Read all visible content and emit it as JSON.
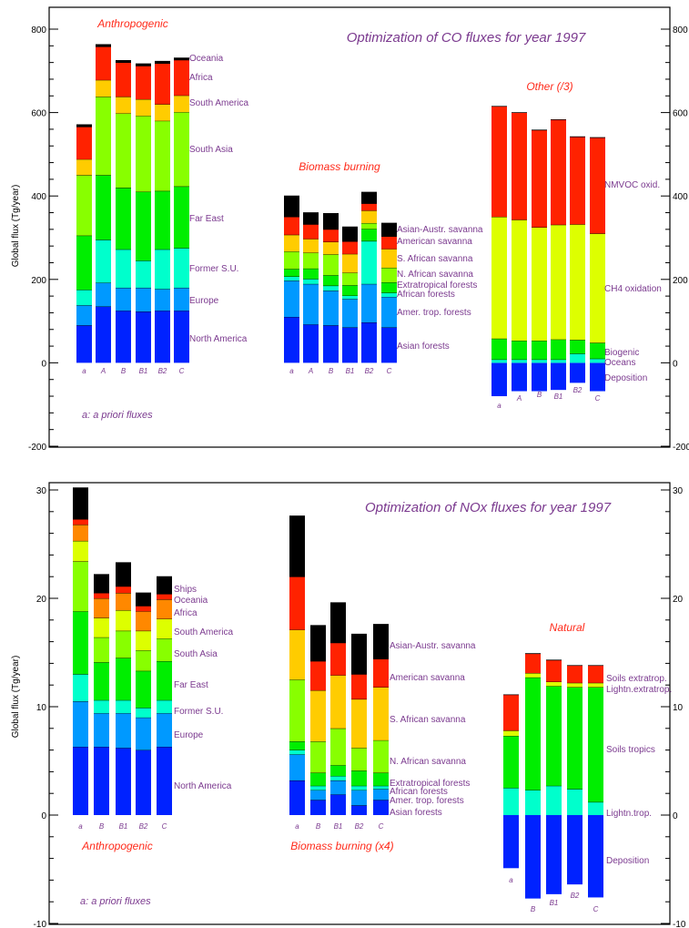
{
  "colors": {
    "palette": [
      "#0022FF",
      "#0099FF",
      "#00FFCC",
      "#00EE00",
      "#88FF00",
      "#DDFF00",
      "#FFCC00",
      "#FF8800",
      "#FF2200",
      "#000000"
    ],
    "label": "#7B3A8F",
    "group_title": "#FF2A1A"
  },
  "chart_data": [
    {
      "type": "bar",
      "stacked": true,
      "title": "Optimization of CO fluxes for year 1997",
      "ylabel": "Global flux (Tg/year)",
      "ylim": [
        -200,
        800
      ],
      "yticks": [
        -200,
        0,
        200,
        400,
        600,
        800
      ],
      "note": "a: a priori fluxes",
      "groups": [
        {
          "title": "Anthropogenic",
          "categories": [
            "a",
            "A",
            "B",
            "B1",
            "B2",
            "C"
          ],
          "legend": [
            "North America",
            "Europe",
            "Former S.U.",
            "Far East",
            "South Asia",
            "South America",
            "Africa",
            "Oceania"
          ],
          "series": [
            {
              "name": "North America",
              "color_index": 0,
              "values": [
                90,
                135,
                125,
                123,
                125,
                125
              ]
            },
            {
              "name": "Europe",
              "color_index": 1,
              "values": [
                48,
                57,
                55,
                57,
                52,
                55
              ]
            },
            {
              "name": "Former S.U.",
              "color_index": 2,
              "values": [
                37,
                103,
                92,
                65,
                95,
                95
              ]
            },
            {
              "name": "Far East",
              "color_index": 3,
              "values": [
                130,
                155,
                148,
                165,
                140,
                148
              ]
            },
            {
              "name": "South Asia",
              "color_index": 4,
              "values": [
                145,
                188,
                178,
                182,
                168,
                178
              ]
            },
            {
              "name": "South America",
              "color_index": 6,
              "values": [
                38,
                40,
                40,
                40,
                40,
                40
              ]
            },
            {
              "name": "Africa",
              "color_index": 8,
              "values": [
                78,
                80,
                82,
                80,
                98,
                85
              ]
            },
            {
              "name": "Oceania",
              "color_index": 9,
              "values": [
                5,
                5,
                5,
                5,
                5,
                5
              ]
            }
          ]
        },
        {
          "title": "Biomass burning",
          "categories": [
            "a",
            "A",
            "B",
            "B1",
            "B2",
            "C"
          ],
          "legend": [
            "Asian forests",
            "Amer. trop. forests",
            "African forests",
            "Extratropical forests",
            "N. African savanna",
            "S. African savanna",
            "American savanna",
            "Asian-Austr. savanna"
          ],
          "series": [
            {
              "name": "Asian forests",
              "color_index": 0,
              "values": [
                110,
                92,
                90,
                85,
                97,
                85
              ]
            },
            {
              "name": "Amer. trop. forests",
              "color_index": 1,
              "values": [
                87,
                97,
                83,
                68,
                92,
                73
              ]
            },
            {
              "name": "African forests",
              "color_index": 2,
              "values": [
                10,
                12,
                12,
                8,
                103,
                10
              ]
            },
            {
              "name": "Extratropical forests",
              "color_index": 3,
              "values": [
                18,
                25,
                25,
                25,
                29,
                25
              ]
            },
            {
              "name": "N. African savanna",
              "color_index": 4,
              "values": [
                42,
                38,
                50,
                30,
                14,
                35
              ]
            },
            {
              "name": "S. African savanna",
              "color_index": 6,
              "values": [
                40,
                33,
                30,
                45,
                30,
                45
              ]
            },
            {
              "name": "American savanna",
              "color_index": 8,
              "values": [
                43,
                35,
                30,
                30,
                17,
                30
              ]
            },
            {
              "name": "Asian-Austr. savanna",
              "color_index": 9,
              "values": [
                50,
                28,
                38,
                35,
                27,
                32
              ]
            }
          ]
        },
        {
          "title": "Other (/3)",
          "categories": [
            "a",
            "A",
            "B",
            "B1",
            "B2",
            "C"
          ],
          "legend": [
            "Deposition",
            "Oceans",
            "Biogenic",
            "CH4 oxidation",
            "NMVOC oxid."
          ],
          "series": [
            {
              "name": "Deposition",
              "color_index": 0,
              "values": [
                -80,
                -68,
                -68,
                -65,
                -48,
                -68
              ],
              "negative": true
            },
            {
              "name": "Oceans",
              "color_index": 2,
              "values": [
                8,
                8,
                8,
                8,
                22,
                10
              ]
            },
            {
              "name": "Biogenic",
              "color_index": 3,
              "values": [
                50,
                45,
                45,
                48,
                33,
                38
              ]
            },
            {
              "name": "CH4 oxidation",
              "color_index": 5,
              "values": [
                292,
                290,
                272,
                275,
                277,
                262
              ]
            },
            {
              "name": "NMVOC oxid.",
              "color_index": 8,
              "values": [
                265,
                257,
                233,
                252,
                210,
                230
              ]
            }
          ]
        }
      ]
    },
    {
      "type": "bar",
      "stacked": true,
      "title": "Optimization of NOx fluxes for year 1997",
      "ylabel": "Global flux (Tg/year)",
      "ylim": [
        -10,
        30
      ],
      "yticks": [
        -10,
        0,
        10,
        20,
        30
      ],
      "note": "a: a priori fluxes",
      "groups": [
        {
          "title": "Anthropogenic",
          "categories": [
            "a",
            "B",
            "B1",
            "B2",
            "C"
          ],
          "legend": [
            "North America",
            "Europe",
            "Former S.U.",
            "Far East",
            "South Asia",
            "South America",
            "Africa",
            "Oceania",
            "Ships"
          ],
          "series": [
            {
              "name": "North America",
              "color_index": 0,
              "values": [
                6.3,
                6.3,
                6.2,
                6.0,
                6.3
              ]
            },
            {
              "name": "Europe",
              "color_index": 1,
              "values": [
                4.2,
                3.1,
                3.2,
                3.0,
                3.1
              ]
            },
            {
              "name": "Former S.U.",
              "color_index": 2,
              "values": [
                2.5,
                1.2,
                1.2,
                0.9,
                1.2
              ]
            },
            {
              "name": "Far East",
              "color_index": 3,
              "values": [
                5.8,
                3.5,
                3.9,
                3.4,
                3.6
              ]
            },
            {
              "name": "South Asia",
              "color_index": 4,
              "values": [
                4.6,
                2.3,
                2.5,
                1.9,
                2.1
              ]
            },
            {
              "name": "South America",
              "color_index": 5,
              "values": [
                1.9,
                1.8,
                1.9,
                1.8,
                1.8
              ]
            },
            {
              "name": "Africa",
              "color_index": 7,
              "values": [
                1.5,
                1.8,
                1.6,
                1.8,
                1.8
              ]
            },
            {
              "name": "Oceania",
              "color_index": 8,
              "values": [
                0.5,
                0.5,
                0.6,
                0.5,
                0.5
              ]
            },
            {
              "name": "Ships",
              "color_index": 9,
              "values": [
                2.9,
                1.7,
                2.2,
                1.2,
                1.6
              ]
            }
          ]
        },
        {
          "title": "Biomass burning (x4)",
          "categories": [
            "a",
            "B",
            "B1",
            "B2",
            "C"
          ],
          "legend": [
            "Asian forests",
            "Amer. trop. forests",
            "African forests",
            "Extratropical forests",
            "N. African savanna",
            "S. African savanna",
            "American savanna",
            "Asian-Austr. savanna"
          ],
          "series": [
            {
              "name": "Asian forests",
              "color_index": 0,
              "values": [
                3.2,
                1.4,
                1.9,
                0.9,
                1.4
              ]
            },
            {
              "name": "Amer. trop. forests",
              "color_index": 1,
              "values": [
                2.4,
                0.9,
                1.3,
                1.4,
                1.0
              ]
            },
            {
              "name": "African forests",
              "color_index": 2,
              "values": [
                0.4,
                0.4,
                0.4,
                0.4,
                0.3
              ]
            },
            {
              "name": "Extratropical forests",
              "color_index": 3,
              "values": [
                0.8,
                1.2,
                1.0,
                1.4,
                1.2
              ]
            },
            {
              "name": "N. African savanna",
              "color_index": 4,
              "values": [
                5.7,
                2.9,
                3.4,
                2.1,
                3.0
              ]
            },
            {
              "name": "S. African savanna",
              "color_index": 6,
              "values": [
                4.6,
                4.7,
                4.9,
                4.5,
                4.9
              ]
            },
            {
              "name": "American savanna",
              "color_index": 8,
              "values": [
                4.9,
                2.7,
                3.0,
                2.3,
                2.6
              ]
            },
            {
              "name": "Asian-Austr. savanna",
              "color_index": 9,
              "values": [
                5.6,
                3.3,
                3.7,
                3.7,
                3.2
              ]
            }
          ]
        },
        {
          "title": "Natural",
          "categories": [
            "a",
            "B",
            "B1",
            "B2",
            "C"
          ],
          "legend": [
            "Deposition",
            "Lightn.trop.",
            "Soils tropics",
            "Lightn.extratrop.",
            "Soils extratrop."
          ],
          "series": [
            {
              "name": "Deposition",
              "color_index": 0,
              "values": [
                -4.9,
                -7.7,
                -7.3,
                -6.4,
                -7.6
              ],
              "negative": true
            },
            {
              "name": "Lightn.trop.",
              "color_index": 2,
              "values": [
                2.5,
                2.3,
                2.7,
                2.4,
                1.2
              ]
            },
            {
              "name": "Soils tropics",
              "color_index": 3,
              "values": [
                4.8,
                10.4,
                9.2,
                9.4,
                10.6
              ]
            },
            {
              "name": "Lightn.extratrop.",
              "color_index": 5,
              "values": [
                0.5,
                0.4,
                0.4,
                0.4,
                0.4
              ]
            },
            {
              "name": "Soils extratrop.",
              "color_index": 8,
              "values": [
                3.3,
                1.8,
                2.0,
                1.6,
                1.6
              ]
            }
          ]
        }
      ]
    }
  ]
}
